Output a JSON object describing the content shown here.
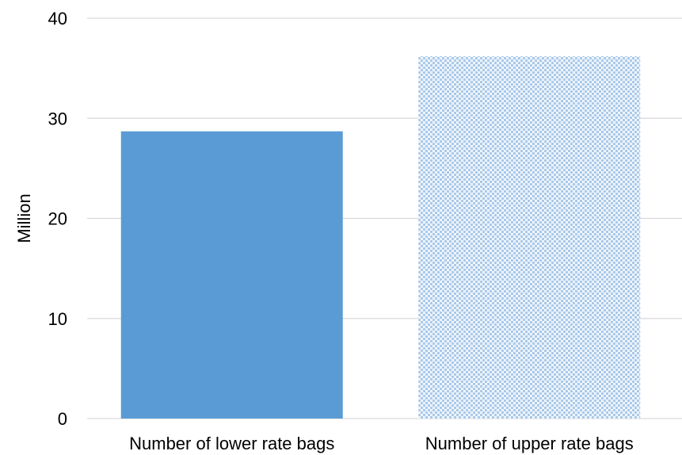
{
  "chart_data": {
    "type": "bar",
    "title": "",
    "xlabel": "",
    "ylabel": "Million",
    "ylim": [
      0,
      40
    ],
    "yticks": [
      0,
      10,
      20,
      30,
      40
    ],
    "grid": true,
    "legend": "none",
    "categories": [
      "Number of lower rate bags",
      "Number of upper rate bags"
    ],
    "values": [
      28.7,
      36.2
    ],
    "bar_styles": [
      {
        "fill": "solid",
        "color": "#5b9bd5"
      },
      {
        "fill": "dotted-pattern",
        "color": "#9dc3e6"
      }
    ],
    "gridline_color": "#d9d9d9",
    "axis_color": "#d9d9d9"
  }
}
